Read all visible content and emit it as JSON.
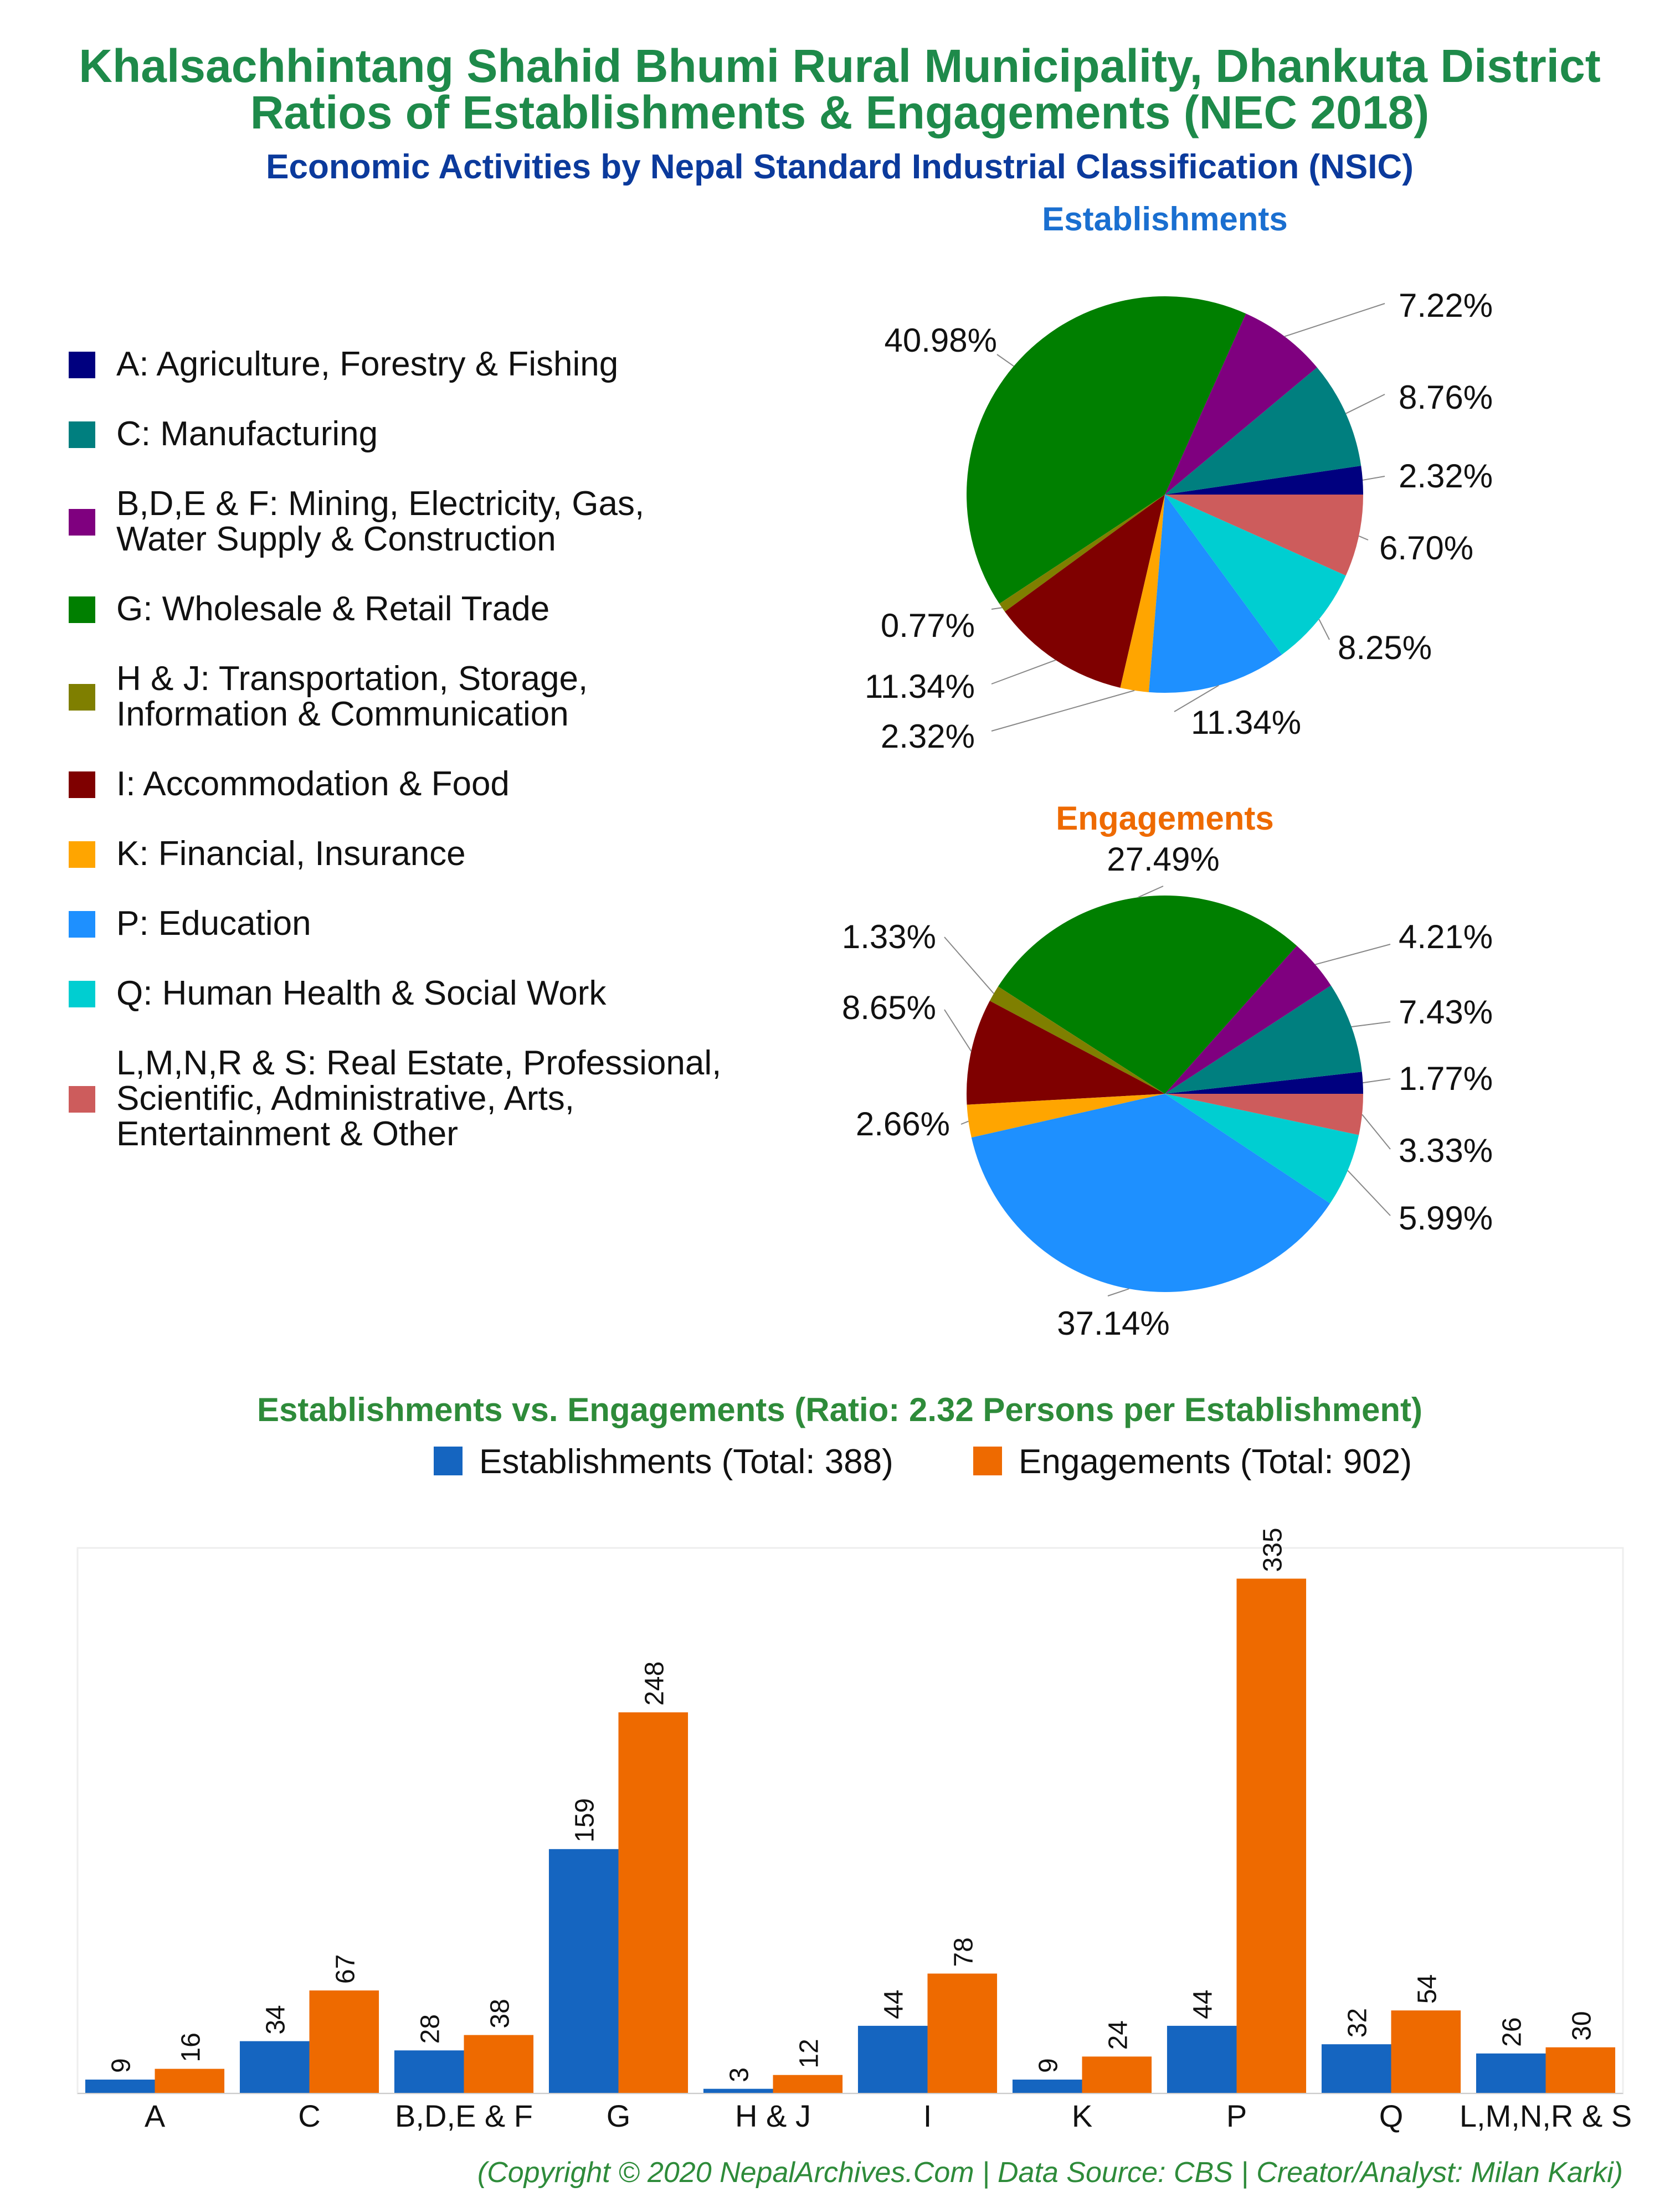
{
  "header": {
    "title_line1": "Khalsachhintang Shahid Bhumi Rural Municipality, Dhankuta District",
    "title_line2": "Ratios of Establishments & Engagements (NEC 2018)",
    "subtitle": "Economic Activities by Nepal Standard Industrial Classification (NSIC)"
  },
  "colors": {
    "title": "#1e8a4a",
    "subtitle": "#0b3a9c",
    "establishments_title": "#1a6fd0",
    "engagements_title": "#ee6a00",
    "bar_establishments": "#1565c0",
    "bar_engagements": "#ee6a00",
    "footer": "#2e8b3a"
  },
  "legend": {
    "items": [
      {
        "lines": [
          "A: Agriculture, Forestry & Fishing"
        ],
        "color": "#00007f"
      },
      {
        "lines": [
          "C: Manufacturing"
        ],
        "color": "#007f7f"
      },
      {
        "lines": [
          "B,D,E & F: Mining, Electricity, Gas,",
          "Water Supply & Construction"
        ],
        "color": "#7f007f"
      },
      {
        "lines": [
          "G: Wholesale & Retail Trade"
        ],
        "color": "#007f00"
      },
      {
        "lines": [
          "H & J: Transportation, Storage,",
          "Information & Communication"
        ],
        "color": "#7f7f00"
      },
      {
        "lines": [
          "I: Accommodation & Food"
        ],
        "color": "#7f0000"
      },
      {
        "lines": [
          "K: Financial, Insurance"
        ],
        "color": "#ffa500"
      },
      {
        "lines": [
          "P: Education"
        ],
        "color": "#1e90ff"
      },
      {
        "lines": [
          "Q: Human Health & Social Work"
        ],
        "color": "#00ced1"
      },
      {
        "lines": [
          "L,M,N,R & S: Real Estate, Professional,",
          "Scientific, Administrative, Arts,",
          "Entertainment & Other"
        ],
        "color": "#cd5c5c"
      }
    ]
  },
  "chart_data": [
    {
      "type": "pie",
      "title": "Establishments",
      "categories": [
        "A",
        "C",
        "B,D,E & F",
        "G",
        "H & J",
        "I",
        "K",
        "P",
        "Q",
        "L,M,N,R & S"
      ],
      "values": [
        2.32,
        8.76,
        7.22,
        40.98,
        0.77,
        11.34,
        2.32,
        11.34,
        8.25,
        6.7
      ],
      "labels": [
        "2.32%",
        "8.76%",
        "7.22%",
        "40.98%",
        "0.77%",
        "11.34%",
        "2.32%",
        "11.34%",
        "8.25%",
        "6.70%"
      ]
    },
    {
      "type": "pie",
      "title": "Engagements",
      "categories": [
        "A",
        "C",
        "B,D,E & F",
        "G",
        "H & J",
        "I",
        "K",
        "P",
        "Q",
        "L,M,N,R & S"
      ],
      "values": [
        1.77,
        7.43,
        4.21,
        27.49,
        1.33,
        8.65,
        2.66,
        37.14,
        5.99,
        3.33
      ],
      "labels": [
        "1.77%",
        "7.43%",
        "4.21%",
        "27.49%",
        "1.33%",
        "8.65%",
        "2.66%",
        "37.14%",
        "5.99%",
        "3.33%"
      ]
    },
    {
      "type": "bar",
      "title": "Establishments vs. Engagements (Ratio: 2.32 Persons per Establishment)",
      "categories": [
        "A",
        "C",
        "B,D,E & F",
        "G",
        "H & J",
        "I",
        "K",
        "P",
        "Q",
        "L,M,N,R & S"
      ],
      "series": [
        {
          "name": "Establishments (Total: 388)",
          "values": [
            9,
            34,
            28,
            159,
            3,
            44,
            9,
            44,
            32,
            26
          ]
        },
        {
          "name": "Engagements (Total: 902)",
          "values": [
            16,
            67,
            38,
            248,
            12,
            78,
            24,
            335,
            54,
            30
          ]
        }
      ],
      "ylim": [
        0,
        355
      ],
      "legend": "top-center"
    }
  ],
  "footer": "(Copyright © 2020 NepalArchives.Com | Data Source: CBS | Creator/Analyst: Milan Karki)"
}
